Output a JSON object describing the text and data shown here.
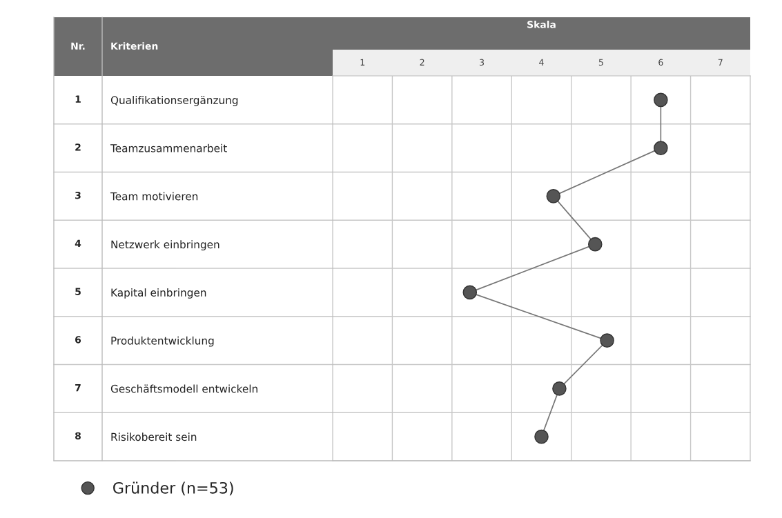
{
  "chart_data": {
    "type": "line",
    "orientation": "horizontal",
    "title": "Skala",
    "categories": [
      "Qualifikationsergänzung",
      "Teamzusammenarbeit",
      "Team motivieren",
      "Netzwerk einbringen",
      "Kapital einbringen",
      "Produktentwicklung",
      "Geschäftsmodell entwickeln",
      "Risikobereit sein"
    ],
    "series": [
      {
        "name": "Gründer (n=53)",
        "color": "#555555",
        "values": [
          6.0,
          6.0,
          4.2,
          4.9,
          2.8,
          5.1,
          4.3,
          4.0
        ]
      }
    ],
    "xlim": [
      0.5,
      7.5
    ],
    "xticks": [
      1,
      2,
      3,
      4,
      5,
      6,
      7
    ],
    "annotations": [
      "Nr.",
      "Kriterien",
      "1",
      "2",
      "3",
      "4",
      "5",
      "6",
      "7",
      "8"
    ],
    "marker": "circle",
    "line_style": "solid",
    "grid": true,
    "legend": "bottom left"
  }
}
